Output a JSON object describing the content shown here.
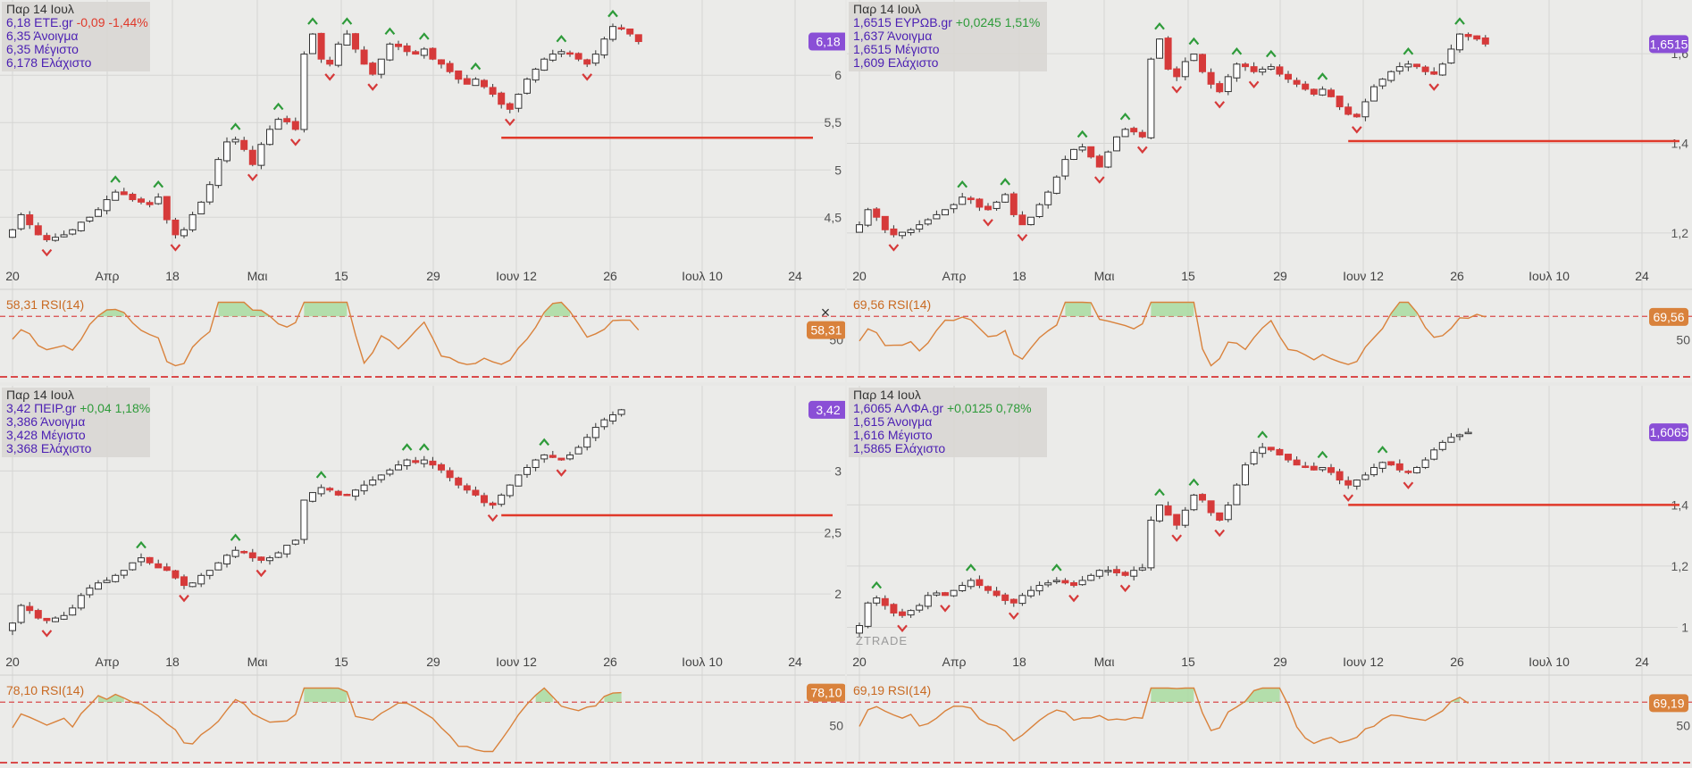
{
  "watermark": "ZTRADE",
  "close_icon": "×",
  "x_ticks": [
    "20",
    "Απρ",
    "18",
    "Μαι",
    "15",
    "29",
    "Ιουν 12",
    "26",
    "Ιουλ 10",
    "24"
  ],
  "rsi_label_suffix": "RSI(14)",
  "colors": {
    "up": "#ffffff",
    "down": "#d63a3a",
    "rsi_line": "#d9823c",
    "rsi_badge": "#d9823c",
    "price_badge": "#8a4fd6",
    "green": "#2e9b3a",
    "purple": "#4b1fb3",
    "red": "#e0392a"
  },
  "chart_data": [
    {
      "type": "candlestick",
      "date": "Παρ 14 Ιουλ",
      "symbol": "ETE.gr",
      "last": "6,18",
      "change": "-0,09 -1,44%",
      "change_dir": "down",
      "open_line": "6,35 Άνοιγμα",
      "high_line": "6,35 Μέγιστο",
      "low_line": "6,178 Ελάχιστο",
      "y_ticks": [
        "6",
        "5,5",
        "5",
        "4,5"
      ],
      "ylim": [
        4.05,
        6.7
      ],
      "support": 5.34,
      "pattern": [
        0.12,
        0.18,
        0.14,
        0.1,
        0.08,
        0.09,
        0.1,
        0.12,
        0.15,
        0.17,
        0.2,
        0.24,
        0.27,
        0.26,
        0.24,
        0.23,
        0.22,
        0.25,
        0.16,
        0.1,
        0.12,
        0.18,
        0.23,
        0.3,
        0.4,
        0.47,
        0.48,
        0.44,
        0.38,
        0.46,
        0.52,
        0.56,
        0.55,
        0.52,
        0.82,
        0.9,
        0.8,
        0.78,
        0.86,
        0.9,
        0.84,
        0.78,
        0.74,
        0.8,
        0.86,
        0.85,
        0.83,
        0.82,
        0.84,
        0.8,
        0.78,
        0.75,
        0.72,
        0.7,
        0.72,
        0.69,
        0.66,
        0.62,
        0.6,
        0.66,
        0.72,
        0.76,
        0.8,
        0.82,
        0.83,
        0.82,
        0.8,
        0.78,
        0.82,
        0.88,
        0.93,
        0.92,
        0.9,
        0.87
      ],
      "rsi_value": "58,31",
      "rsi_value_num": 58.31,
      "rsi_tick": "50",
      "show_close_icon": true
    },
    {
      "type": "candlestick",
      "date": "Παρ 14 Ιουλ",
      "symbol": "ΕΥΡΩΒ.gr",
      "last": "1,6515",
      "change": "+0,0245 1,51%",
      "change_dir": "up",
      "open_line": "1,637 Άνοιγμα",
      "high_line": "1,6515 Μέγιστο",
      "low_line": "1,609 Ελάχιστο",
      "y_ticks": [
        "1,6",
        "1,4",
        "1,2"
      ],
      "ylim": [
        1.14,
        1.7
      ],
      "support": 1.405,
      "pattern": [
        0.14,
        0.2,
        0.17,
        0.12,
        0.1,
        0.11,
        0.12,
        0.14,
        0.16,
        0.18,
        0.2,
        0.22,
        0.25,
        0.24,
        0.21,
        0.2,
        0.23,
        0.26,
        0.18,
        0.14,
        0.17,
        0.22,
        0.27,
        0.33,
        0.4,
        0.44,
        0.45,
        0.41,
        0.37,
        0.43,
        0.49,
        0.52,
        0.51,
        0.49,
        0.8,
        0.88,
        0.76,
        0.73,
        0.79,
        0.82,
        0.75,
        0.7,
        0.67,
        0.73,
        0.78,
        0.77,
        0.75,
        0.76,
        0.77,
        0.74,
        0.72,
        0.7,
        0.68,
        0.66,
        0.68,
        0.65,
        0.61,
        0.58,
        0.57,
        0.63,
        0.69,
        0.72,
        0.75,
        0.77,
        0.78,
        0.77,
        0.75,
        0.74,
        0.78,
        0.84,
        0.9,
        0.89,
        0.88,
        0.86
      ],
      "rsi_value": "69,56",
      "rsi_value_num": 69.56,
      "rsi_tick": "50",
      "show_close_icon": false
    },
    {
      "type": "candlestick",
      "date": "Παρ 14 Ιουλ",
      "symbol": "ΠΕΙΡ.gr",
      "last": "3,42",
      "change": "+0,04 1,18%",
      "change_dir": "up",
      "open_line": "3,386 Άνοιγμα",
      "high_line": "3,428 Μέγιστο",
      "low_line": "3,368 Ελάχιστο",
      "y_ticks": [
        "3",
        "2,5",
        "2"
      ],
      "ylim": [
        1.58,
        3.62
      ],
      "support": 2.64,
      "pattern": [
        0.09,
        0.16,
        0.14,
        0.11,
        0.1,
        0.11,
        0.12,
        0.15,
        0.2,
        0.23,
        0.25,
        0.26,
        0.28,
        0.3,
        0.33,
        0.35,
        0.33,
        0.31,
        0.3,
        0.27,
        0.24,
        0.25,
        0.28,
        0.3,
        0.33,
        0.36,
        0.38,
        0.37,
        0.35,
        0.34,
        0.35,
        0.37,
        0.4,
        0.42,
        0.58,
        0.61,
        0.63,
        0.62,
        0.6,
        0.6,
        0.62,
        0.64,
        0.66,
        0.68,
        0.7,
        0.72,
        0.74,
        0.73,
        0.74,
        0.72,
        0.7,
        0.67,
        0.64,
        0.62,
        0.6,
        0.57,
        0.56,
        0.6,
        0.64,
        0.68,
        0.71,
        0.74,
        0.76,
        0.75,
        0.74,
        0.76,
        0.79,
        0.83,
        0.87,
        0.9,
        0.92,
        0.94
      ],
      "rsi_value": "78,10",
      "rsi_value_num": 78.1,
      "rsi_tick": "50",
      "show_close_icon": false
    },
    {
      "type": "candlestick",
      "date": "Παρ 14 Ιουλ",
      "symbol": "ΑΛΦΑ.gr",
      "last": "1,6065",
      "change": "+0,0125 0,78%",
      "change_dir": "up",
      "open_line": "1,615 Άνοιγμα",
      "high_line": "1,616 Μέγιστο",
      "low_line": "1,5865 Ελάχιστο",
      "y_ticks": [
        "1,4",
        "1,2",
        "1"
      ],
      "ylim": [
        0.94,
        1.76
      ],
      "support": 1.4,
      "pattern": [
        0.08,
        0.17,
        0.19,
        0.16,
        0.13,
        0.12,
        0.14,
        0.16,
        0.2,
        0.21,
        0.2,
        0.22,
        0.24,
        0.26,
        0.24,
        0.22,
        0.2,
        0.18,
        0.17,
        0.2,
        0.22,
        0.24,
        0.25,
        0.26,
        0.25,
        0.24,
        0.26,
        0.28,
        0.3,
        0.3,
        0.29,
        0.28,
        0.3,
        0.31,
        0.5,
        0.56,
        0.52,
        0.48,
        0.54,
        0.6,
        0.58,
        0.53,
        0.5,
        0.56,
        0.64,
        0.72,
        0.77,
        0.79,
        0.78,
        0.76,
        0.74,
        0.72,
        0.71,
        0.7,
        0.71,
        0.69,
        0.66,
        0.64,
        0.66,
        0.68,
        0.71,
        0.73,
        0.72,
        0.7,
        0.69,
        0.71,
        0.74,
        0.78,
        0.81,
        0.83,
        0.84,
        0.85
      ],
      "rsi_value": "69,19",
      "rsi_value_num": 69.19,
      "rsi_tick": "50",
      "show_close_icon": false
    }
  ]
}
